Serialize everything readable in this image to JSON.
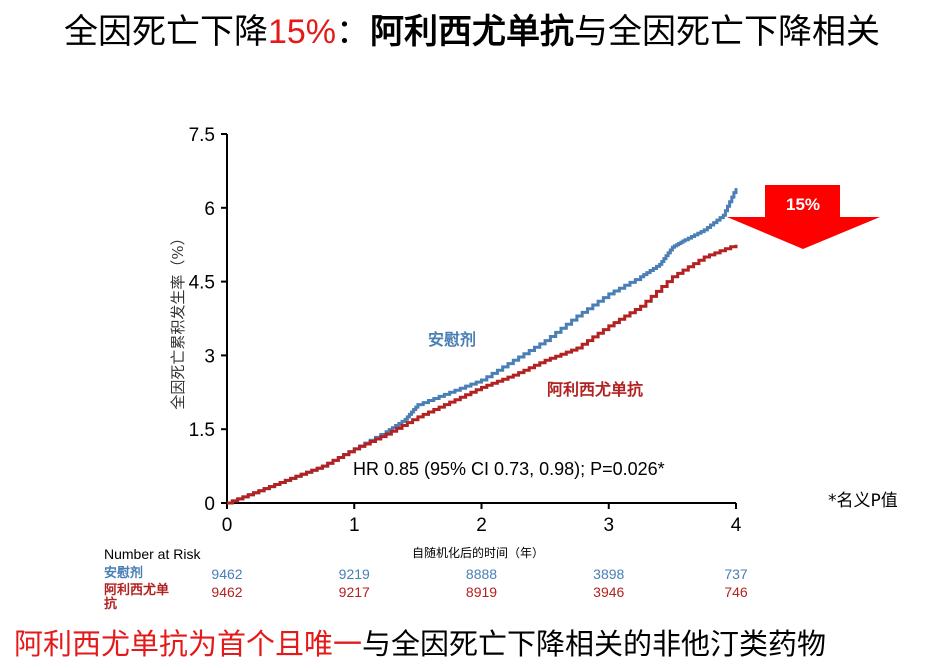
{
  "title": {
    "part1": "全因死亡下降",
    "part2": "15%",
    "part3": "：",
    "part4": "阿利西尤单抗",
    "part5": "与全因死亡下降相关"
  },
  "footer": {
    "red_part": "阿利西尤单抗为首个且唯一",
    "black_part": "与全因死亡下降相关的非他汀类药物"
  },
  "note": "*名义P值",
  "colors": {
    "placebo": "#4a7fb5",
    "drug": "#b22222",
    "arrow": "#ff0000"
  },
  "chart_data": {
    "type": "line",
    "ylabel": "全因死亡累积发生率（%）",
    "xlabel": "自随机化后的时间（年）",
    "xlim": [
      0,
      4
    ],
    "ylim": [
      0,
      7.5
    ],
    "yticks": [
      "0",
      "1.5",
      "3",
      "4.5",
      "6",
      "7.5"
    ],
    "xticks": [
      "0",
      "1",
      "2",
      "3",
      "4"
    ],
    "grid": false,
    "series": [
      {
        "name": "安慰剂",
        "x": [
          0,
          0.25,
          0.5,
          0.75,
          1.0,
          1.25,
          1.4,
          1.5,
          1.75,
          2.0,
          2.25,
          2.5,
          2.75,
          3.0,
          3.25,
          3.4,
          3.5,
          3.6,
          3.75,
          3.9,
          4.0
        ],
        "values": [
          0,
          0.25,
          0.5,
          0.75,
          1.1,
          1.45,
          1.7,
          2.0,
          2.25,
          2.5,
          2.9,
          3.3,
          3.8,
          4.25,
          4.6,
          4.85,
          5.2,
          5.35,
          5.55,
          5.85,
          6.4
        ]
      },
      {
        "name": "阿利西尤单抗",
        "x": [
          0,
          0.25,
          0.5,
          0.75,
          1.0,
          1.25,
          1.5,
          1.75,
          2.0,
          2.25,
          2.5,
          2.75,
          3.0,
          3.25,
          3.5,
          3.75,
          4.0
        ],
        "values": [
          0,
          0.25,
          0.5,
          0.75,
          1.1,
          1.4,
          1.75,
          2.05,
          2.35,
          2.6,
          2.9,
          3.15,
          3.6,
          4.0,
          4.6,
          5.0,
          5.25
        ]
      }
    ],
    "series_labels": [
      "安慰剂",
      "阿利西尤单抗"
    ],
    "annotation": "HR 0.85 (95% CI 0.73, 0.98); P=0.026*",
    "arrow_label": "15%"
  },
  "risk_table": {
    "header": "Number at Risk",
    "rows": [
      {
        "label": "安慰剂",
        "values": [
          "9462",
          "9219",
          "8888",
          "3898",
          "737"
        ]
      },
      {
        "label": "阿利西尤单抗",
        "values": [
          "9462",
          "9217",
          "8919",
          "3946",
          "746"
        ]
      }
    ]
  }
}
